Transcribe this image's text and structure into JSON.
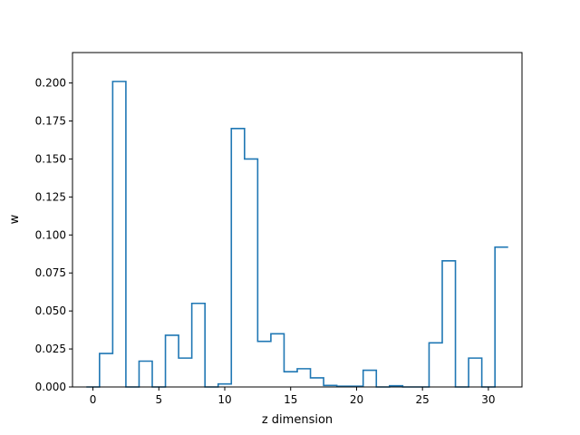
{
  "chart_data": {
    "type": "line",
    "style": "step",
    "title": "",
    "xlabel": "z dimension",
    "ylabel": "w",
    "xlim": [
      -1.55,
      32.55
    ],
    "ylim": [
      0,
      0.22
    ],
    "grid": false,
    "x_ticks": [
      "0",
      "5",
      "10",
      "15",
      "20",
      "25",
      "30"
    ],
    "y_ticks": [
      "0.000",
      "0.025",
      "0.050",
      "0.075",
      "0.100",
      "0.125",
      "0.150",
      "0.175",
      "0.200"
    ],
    "x": [
      0,
      1,
      2,
      3,
      4,
      5,
      6,
      7,
      8,
      9,
      10,
      11,
      12,
      13,
      14,
      15,
      16,
      17,
      18,
      19,
      20,
      21,
      22,
      23,
      24,
      25,
      26,
      27,
      28,
      29,
      30,
      31
    ],
    "values": [
      0.0,
      0.022,
      0.201,
      0.0,
      0.017,
      0.0,
      0.034,
      0.019,
      0.055,
      0.0,
      0.002,
      0.17,
      0.15,
      0.03,
      0.035,
      0.01,
      0.012,
      0.006,
      0.001,
      0.0005,
      0.0005,
      0.011,
      0.0,
      0.0008,
      0.0,
      0.0,
      0.029,
      0.083,
      0.0,
      0.019,
      0.0,
      0.092
    ],
    "line_color": "#1f77b4"
  }
}
